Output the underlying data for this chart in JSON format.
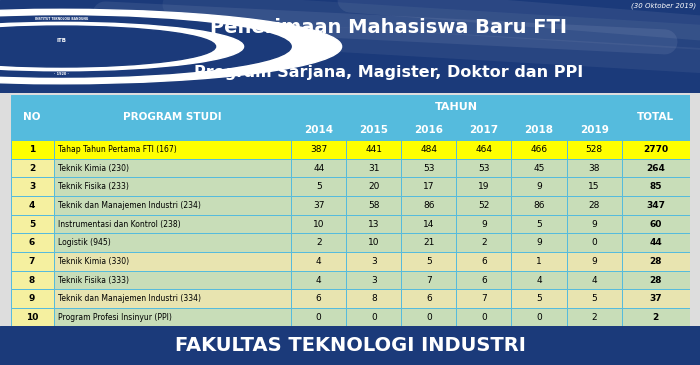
{
  "title_line1": "Penerimaan Mahasiswa Baru FTI",
  "title_line2": "Program Sarjana, Magister, Doktor dan PPI",
  "date_text": "(30 Oktober 2019)",
  "footer_text": "FAKULTAS TEKNOLOGI INDUSTRI",
  "tahun_header": "TAHUN",
  "rows": [
    {
      "no": "1",
      "program": "Tahap Tahun Pertama FTI (167)",
      "vals": [
        387,
        441,
        484,
        464,
        466,
        528,
        2770
      ],
      "highlight": true
    },
    {
      "no": "2",
      "program": "Teknik Kimia (230)",
      "vals": [
        44,
        31,
        53,
        53,
        45,
        38,
        264
      ],
      "highlight": false
    },
    {
      "no": "3",
      "program": "Teknik Fisika (233)",
      "vals": [
        5,
        20,
        17,
        19,
        9,
        15,
        85
      ],
      "highlight": false
    },
    {
      "no": "4",
      "program": "Teknik dan Manajemen Industri (234)",
      "vals": [
        37,
        58,
        86,
        52,
        86,
        28,
        347
      ],
      "highlight": false
    },
    {
      "no": "5",
      "program": "Instrumentasi dan Kontrol (238)",
      "vals": [
        10,
        13,
        14,
        9,
        5,
        9,
        60
      ],
      "highlight": false
    },
    {
      "no": "6",
      "program": "Logistik (945)",
      "vals": [
        2,
        10,
        21,
        2,
        9,
        0,
        44
      ],
      "highlight": false
    },
    {
      "no": "7",
      "program": "Teknik Kimia (330)",
      "vals": [
        4,
        3,
        5,
        6,
        1,
        9,
        28
      ],
      "highlight": false
    },
    {
      "no": "8",
      "program": "Teknik Fisika (333)",
      "vals": [
        4,
        3,
        7,
        6,
        4,
        4,
        28
      ],
      "highlight": false
    },
    {
      "no": "9",
      "program": "Teknik dan Manajemen Industri (334)",
      "vals": [
        6,
        8,
        6,
        7,
        5,
        5,
        37
      ],
      "highlight": false
    },
    {
      "no": "10",
      "program": "Program Profesi Insinyur (PPI)",
      "vals": [
        0,
        0,
        0,
        0,
        0,
        2,
        2
      ],
      "highlight": false
    }
  ],
  "years": [
    "2014",
    "2015",
    "2016",
    "2017",
    "2018",
    "2019"
  ],
  "colors": {
    "header_bg": "#55BBDD",
    "header_text": "#FFFFFF",
    "row_highlight": "#FFFF00",
    "row_green": "#C8DDB8",
    "row_tan": "#E8E4B0",
    "no_col_bg": "#F5F0A0",
    "table_border": "#55BBDD",
    "table_outer_bg": "#AADDEE",
    "top_bg": "#1B3A7A",
    "top_text": "#FFFFFF",
    "footer_bg": "#1B3A7A",
    "footer_text": "#FFFFFF",
    "outer_bg": "#DDDDDD"
  }
}
